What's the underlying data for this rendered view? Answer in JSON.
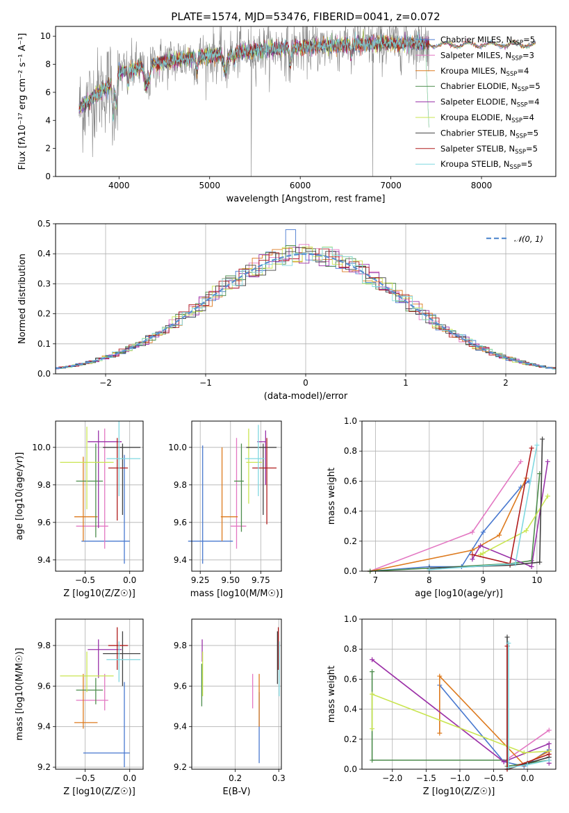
{
  "figure": {
    "title": "PLATE=1574, MJD=53476, FIBERID=0041, z=0.072"
  },
  "colors": {
    "Chabrier MILES": "#4878cf",
    "Salpeter MILES": "#e377c2",
    "Kroupa MILES": "#dd7a1e",
    "Chabrier ELODIE": "#4c8c4c",
    "Salpeter ELODIE": "#9932a8",
    "Kroupa ELODIE": "#c9e550",
    "Chabrier STELIB": "#404040",
    "Salpeter STELIB": "#b01c1c",
    "Kroupa STELIB": "#7fd8e0",
    "data": "#808080",
    "normal": "#5b8fd0"
  },
  "chart_data": [
    {
      "id": "spectrum",
      "type": "line",
      "title": "PLATE=1574, MJD=53476, FIBERID=0041, z=0.072",
      "xlabel": "wavelength [Angstrom, rest frame]",
      "ylabel": "Flux [fλ10⁻¹⁷ erg cm⁻² s⁻¹ A⁻¹]",
      "xlim": [
        3300,
        8820
      ],
      "ylim": [
        0,
        10.7
      ],
      "xticks": [
        4000,
        5000,
        6000,
        7000,
        8000
      ],
      "yticks": [
        0,
        2,
        4,
        6,
        8,
        10
      ],
      "legend_position": "right",
      "legend": [
        "Chabrier MILES, N_SSP=5",
        "Salpeter MILES, N_SSP=3",
        "Kroupa MILES, N_SSP=4",
        "Chabrier ELODIE, N_SSP=5",
        "Salpeter ELODIE, N_SSP=4",
        "Kroupa ELODIE, N_SSP=4",
        "Chabrier STELIB, N_SSP=5",
        "Salpeter STELIB, N_SSP=5",
        "Kroupa STELIB, N_SSP=5"
      ],
      "series_note": "observed spectrum (grey) with nine SSP model fits; continuum rises from ~4 at 3600 A to ~9.5 near 6500 A",
      "continuum_x": [
        3560,
        3700,
        3900,
        4000,
        4300,
        4600,
        5000,
        5500,
        6000,
        6500,
        7000,
        7400
      ],
      "continuum_y": [
        4.8,
        5.6,
        6.6,
        7.4,
        7.9,
        8.3,
        8.6,
        9.0,
        9.2,
        9.4,
        9.5,
        9.5
      ]
    },
    {
      "id": "residuals",
      "type": "histogram",
      "xlabel": "(data-model)/error",
      "ylabel": "Normed distribution",
      "xlim": [
        -2.5,
        2.5
      ],
      "ylim": [
        0,
        0.5
      ],
      "xticks": [
        -2,
        -1,
        0,
        1,
        2
      ],
      "yticks": [
        0,
        0.1,
        0.2,
        0.3,
        0.4,
        0.5
      ],
      "legend": [
        "𝒩(0, 1)"
      ],
      "legend_position": "top-right",
      "grid": true,
      "bin_width": 0.1,
      "normal_curve": {
        "mean": 0,
        "sigma": 1
      }
    },
    {
      "id": "age_vs_Z",
      "type": "errorbar",
      "xlabel": "Z [log10(Z/Z☉)]",
      "ylabel": "age  [log10(age/yr)]",
      "xlim": [
        -0.83,
        0.15
      ],
      "ylim": [
        9.34,
        10.14
      ],
      "xticks": [
        -0.5,
        0.0
      ],
      "yticks": [
        9.4,
        9.6,
        9.8,
        10.0
      ],
      "points": [
        {
          "model": "Chabrier MILES",
          "x": -0.06,
          "xerr": [
            0.48,
            0.06
          ],
          "y": 9.5,
          "yerr": [
            0.12,
            0.46
          ]
        },
        {
          "model": "Salpeter MILES",
          "x": -0.28,
          "xerr": [
            0.32,
            0.04
          ],
          "y": 9.58,
          "yerr": [
            0.12,
            0.52
          ]
        },
        {
          "model": "Kroupa MILES",
          "x": -0.52,
          "xerr": [
            0.1,
            0.16
          ],
          "y": 9.63,
          "yerr": [
            0.13,
            0.32
          ]
        },
        {
          "model": "Chabrier ELODIE",
          "x": -0.38,
          "xerr": [
            0.22,
            0.08
          ],
          "y": 9.82,
          "yerr": [
            0.3,
            0.2
          ]
        },
        {
          "model": "Salpeter ELODIE",
          "x": -0.35,
          "xerr": [
            0.12,
            0.26
          ],
          "y": 10.03,
          "yerr": [
            0.46,
            0.06
          ]
        },
        {
          "model": "Kroupa ELODIE",
          "x": -0.48,
          "xerr": [
            0.3,
            0.3
          ],
          "y": 9.92,
          "yerr": [
            0.25,
            0.19
          ]
        },
        {
          "model": "Chabrier STELIB",
          "x": -0.08,
          "xerr": [
            0.22,
            0.2
          ],
          "y": 10.0,
          "yerr": [
            0.36,
            0.02
          ]
        },
        {
          "model": "Salpeter STELIB",
          "x": -0.14,
          "xerr": [
            0.1,
            0.12
          ],
          "y": 9.89,
          "yerr": [
            0.28,
            0.16
          ]
        },
        {
          "model": "Kroupa STELIB",
          "x": -0.12,
          "xerr": [
            0.14,
            0.24
          ],
          "y": 9.94,
          "yerr": [
            0.2,
            0.2
          ]
        }
      ]
    },
    {
      "id": "age_vs_mass",
      "type": "errorbar",
      "xlabel": "mass [log10(M/M☉)]",
      "ylabel": "",
      "xlim": [
        9.18,
        9.92
      ],
      "ylim": [
        9.34,
        10.14
      ],
      "xticks": [
        9.25,
        9.5,
        9.75
      ],
      "yticks": [
        9.4,
        9.6,
        9.8,
        10.0
      ],
      "points": [
        {
          "model": "Chabrier MILES",
          "x": 9.27,
          "xerr": [
            0.12,
            0.25
          ],
          "y": 9.5,
          "yerr": [
            0.12,
            0.51
          ]
        },
        {
          "model": "Salpeter MILES",
          "x": 9.55,
          "xerr": [
            0.05,
            0.08
          ],
          "y": 9.58,
          "yerr": [
            0.12,
            0.47
          ]
        },
        {
          "model": "Kroupa MILES",
          "x": 9.43,
          "xerr": [
            0.01,
            0.13
          ],
          "y": 9.63,
          "yerr": [
            0.13,
            0.37
          ]
        },
        {
          "model": "Chabrier ELODIE",
          "x": 9.59,
          "xerr": [
            0.06,
            0.02
          ],
          "y": 9.82,
          "yerr": [
            0.27,
            0.2
          ]
        },
        {
          "model": "Salpeter ELODIE",
          "x": 9.79,
          "xerr": [
            0.07,
            0.0
          ],
          "y": 10.03,
          "yerr": [
            0.23,
            0.06
          ]
        },
        {
          "model": "Kroupa ELODIE",
          "x": 9.65,
          "xerr": [
            0.02,
            0.11
          ],
          "y": 9.92,
          "yerr": [
            0.22,
            0.18
          ]
        },
        {
          "model": "Chabrier STELIB",
          "x": 9.77,
          "xerr": [
            0.14,
            0.11
          ],
          "y": 10.0,
          "yerr": [
            0.36,
            0.02
          ]
        },
        {
          "model": "Salpeter STELIB",
          "x": 9.8,
          "xerr": [
            0.12,
            0.08
          ],
          "y": 9.89,
          "yerr": [
            0.3,
            0.16
          ]
        },
        {
          "model": "Kroupa STELIB",
          "x": 9.73,
          "xerr": [
            0.11,
            0.05
          ],
          "y": 9.94,
          "yerr": [
            0.2,
            0.18
          ]
        }
      ]
    },
    {
      "id": "weight_vs_age",
      "type": "line",
      "xlabel": "age  [log10(age/yr)]",
      "ylabel": "mass weight",
      "xlim": [
        6.75,
        10.35
      ],
      "ylim": [
        0,
        1
      ],
      "xticks": [
        7,
        8,
        9,
        10
      ],
      "yticks": [
        0,
        0.2,
        0.4,
        0.6,
        0.8,
        1.0
      ],
      "grid": true,
      "series": [
        {
          "model": "Chabrier MILES",
          "x": [
            6.9,
            8.0,
            8.6,
            9.0,
            9.7,
            9.85
          ],
          "y": [
            0.0,
            0.03,
            0.03,
            0.26,
            0.56,
            0.6
          ]
        },
        {
          "model": "Salpeter MILES",
          "x": [
            6.9,
            8.8,
            9.7
          ],
          "y": [
            0.0,
            0.26,
            0.73
          ]
        },
        {
          "model": "Kroupa MILES",
          "x": [
            6.9,
            8.8,
            9.3,
            9.8
          ],
          "y": [
            0.0,
            0.14,
            0.24,
            0.62
          ]
        },
        {
          "model": "Chabrier ELODIE",
          "x": [
            6.9,
            8.0,
            9.5,
            9.9,
            10.05
          ],
          "y": [
            0.0,
            0.02,
            0.05,
            0.07,
            0.65
          ]
        },
        {
          "model": "Salpeter ELODIE",
          "x": [
            8.8,
            8.95,
            9.9,
            10.2
          ],
          "y": [
            0.08,
            0.17,
            0.03,
            0.73
          ]
        },
        {
          "model": "Kroupa ELODIE",
          "x": [
            8.95,
            9.0,
            9.8,
            10.2
          ],
          "y": [
            0.11,
            0.12,
            0.27,
            0.5
          ]
        },
        {
          "model": "Chabrier STELIB",
          "x": [
            8.0,
            9.5,
            10.05,
            10.1
          ],
          "y": [
            0.02,
            0.04,
            0.06,
            0.88
          ]
        },
        {
          "model": "Salpeter STELIB",
          "x": [
            8.8,
            9.5,
            9.9
          ],
          "y": [
            0.11,
            0.05,
            0.82
          ]
        },
        {
          "model": "Kroupa STELIB",
          "x": [
            8.0,
            9.6,
            10.0
          ],
          "y": [
            0.01,
            0.05,
            0.84
          ]
        }
      ]
    },
    {
      "id": "mass_vs_Z",
      "type": "errorbar",
      "xlabel": "Z [log10(Z/Z☉)]",
      "ylabel": "mass [log10(M/M☉)]",
      "xlim": [
        -0.83,
        0.15
      ],
      "ylim": [
        9.19,
        9.93
      ],
      "xticks": [
        -0.5,
        0.0
      ],
      "yticks": [
        9.2,
        9.4,
        9.6,
        9.8
      ],
      "points": [
        {
          "model": "Chabrier MILES",
          "x": -0.06,
          "xerr": [
            0.46,
            0.06
          ],
          "y": 9.27,
          "yerr": [
            0.07,
            0.35
          ]
        },
        {
          "model": "Salpeter MILES",
          "x": -0.28,
          "xerr": [
            0.32,
            0.04
          ],
          "y": 9.53,
          "yerr": [
            0.05,
            0.13
          ]
        },
        {
          "model": "Kroupa MILES",
          "x": -0.52,
          "xerr": [
            0.1,
            0.16
          ],
          "y": 9.42,
          "yerr": [
            0.03,
            0.24
          ]
        },
        {
          "model": "Chabrier ELODIE",
          "x": -0.38,
          "xerr": [
            0.22,
            0.08
          ],
          "y": 9.58,
          "yerr": [
            0.07,
            0.06
          ]
        },
        {
          "model": "Salpeter ELODIE",
          "x": -0.35,
          "xerr": [
            0.12,
            0.26
          ],
          "y": 9.78,
          "yerr": [
            0.14,
            0.05
          ]
        },
        {
          "model": "Kroupa ELODIE",
          "x": -0.48,
          "xerr": [
            0.3,
            0.3
          ],
          "y": 9.65,
          "yerr": [
            0.08,
            0.12
          ]
        },
        {
          "model": "Chabrier STELIB",
          "x": -0.08,
          "xerr": [
            0.22,
            0.2
          ],
          "y": 9.76,
          "yerr": [
            0.16,
            0.11
          ]
        },
        {
          "model": "Salpeter STELIB",
          "x": -0.14,
          "xerr": [
            0.1,
            0.12
          ],
          "y": 9.8,
          "yerr": [
            0.12,
            0.09
          ]
        },
        {
          "model": "Kroupa STELIB",
          "x": -0.12,
          "xerr": [
            0.14,
            0.24
          ],
          "y": 9.73,
          "yerr": [
            0.11,
            0.09
          ]
        }
      ]
    },
    {
      "id": "mass_vs_ebv",
      "type": "errorbar",
      "xlabel": "E(B-V)",
      "ylabel": "",
      "xlim": [
        0.1,
        0.306
      ],
      "ylim": [
        9.19,
        9.93
      ],
      "xticks": [
        0.2,
        0.3
      ],
      "yticks": [
        9.2,
        9.4,
        9.6,
        9.8
      ],
      "points": [
        {
          "model": "Chabrier MILES",
          "x": 0.255,
          "y": 9.27,
          "yerr": [
            0.05,
            0.3
          ]
        },
        {
          "model": "Salpeter MILES",
          "x": 0.24,
          "y": 9.53,
          "yerr": [
            0.04,
            0.13
          ]
        },
        {
          "model": "Kroupa MILES",
          "x": 0.255,
          "y": 9.42,
          "yerr": [
            0.02,
            0.24
          ]
        },
        {
          "model": "Chabrier ELODIE",
          "x": 0.123,
          "y": 9.58,
          "yerr": [
            0.08,
            0.13
          ]
        },
        {
          "model": "Salpeter ELODIE",
          "x": 0.124,
          "y": 9.78,
          "yerr": [
            0.06,
            0.05
          ]
        },
        {
          "model": "Kroupa ELODIE",
          "x": 0.125,
          "y": 9.65,
          "yerr": [
            0.1,
            0.12
          ]
        },
        {
          "model": "Chabrier STELIB",
          "x": 0.297,
          "y": 9.76,
          "yerr": [
            0.15,
            0.11
          ]
        },
        {
          "model": "Salpeter STELIB",
          "x": 0.299,
          "y": 9.8,
          "yerr": [
            0.12,
            0.09
          ]
        },
        {
          "model": "Kroupa STELIB",
          "x": 0.301,
          "y": 9.73,
          "yerr": [
            0.18,
            0.09
          ]
        }
      ]
    },
    {
      "id": "weight_vs_Z",
      "type": "line",
      "xlabel": "Z [log10(Z/Z☉)]",
      "ylabel": "mass weight",
      "xlim": [
        -2.45,
        0.42
      ],
      "ylim": [
        0,
        1
      ],
      "xticks": [
        -2.0,
        -1.5,
        -1.0,
        -0.5,
        0.0
      ],
      "yticks": [
        0,
        0.2,
        0.4,
        0.6,
        0.8,
        1.0
      ],
      "grid": true,
      "series": [
        {
          "model": "Chabrier MILES",
          "x": [
            -1.3,
            -0.35,
            -0.05,
            0.32
          ],
          "y": [
            0.56,
            0.05,
            0.02,
            0.13
          ]
        },
        {
          "model": "Salpeter MILES",
          "x": [
            -2.3,
            -0.35,
            0.32
          ],
          "y": [
            0.73,
            0.05,
            0.26
          ]
        },
        {
          "model": "Kroupa MILES",
          "x": [
            -1.3,
            -1.3,
            -0.05,
            0.32
          ],
          "y": [
            0.24,
            0.62,
            0.03,
            0.12
          ]
        },
        {
          "model": "Chabrier ELODIE",
          "x": [
            -2.3,
            -2.3,
            -0.3,
            -0.3,
            0.32
          ],
          "y": [
            0.65,
            0.06,
            0.06,
            0.02,
            0.06
          ]
        },
        {
          "model": "Salpeter ELODIE",
          "x": [
            -2.3,
            -0.35,
            0.32,
            0.32
          ],
          "y": [
            0.73,
            0.05,
            0.17,
            0.04
          ]
        },
        {
          "model": "Kroupa ELODIE",
          "x": [
            -2.3,
            -2.3,
            -0.05,
            0.32
          ],
          "y": [
            0.27,
            0.5,
            0.11,
            0.12
          ]
        },
        {
          "model": "Chabrier STELIB",
          "x": [
            -0.3,
            -0.3,
            0.0,
            0.32
          ],
          "y": [
            0.88,
            0.0,
            0.04,
            0.08
          ]
        },
        {
          "model": "Salpeter STELIB",
          "x": [
            -0.3,
            -0.3,
            0.32
          ],
          "y": [
            0.82,
            0.0,
            0.1
          ]
        },
        {
          "model": "Kroupa STELIB",
          "x": [
            -0.28,
            -0.28,
            0.0,
            0.32
          ],
          "y": [
            0.84,
            0.01,
            0.03,
            0.06
          ]
        }
      ]
    }
  ]
}
